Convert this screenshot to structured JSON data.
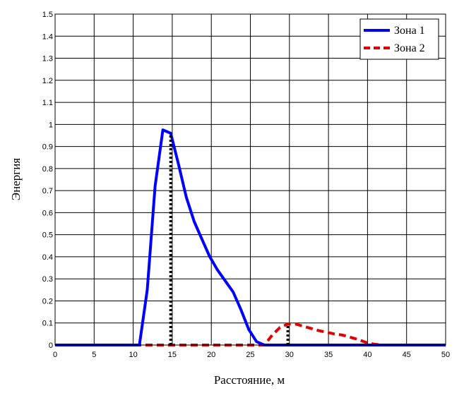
{
  "chart_data": {
    "type": "line",
    "xlabel": "Расстояние, м",
    "ylabel": "Энергия",
    "xlim": [
      0,
      50
    ],
    "ylim": [
      0,
      1.5
    ],
    "xticks": [
      0,
      5,
      10,
      15,
      20,
      25,
      30,
      35,
      40,
      45,
      50
    ],
    "yticks": [
      0,
      0.1,
      0.2,
      0.3,
      0.4,
      0.5,
      0.6,
      0.7,
      0.8,
      0.9,
      1,
      1.1,
      1.2,
      1.3,
      1.4,
      1.5
    ],
    "grid": true,
    "legend_position": "top-right",
    "series": [
      {
        "name": "Зона 1",
        "color": "#0000ff",
        "style": "solid",
        "x": [
          0,
          10.8,
          11.8,
          12.8,
          13.8,
          14.8,
          15.8,
          16.8,
          17.8,
          18.8,
          19.8,
          20.8,
          21.8,
          22.8,
          23.8,
          24.8,
          25.8,
          26.8,
          50
        ],
        "y": [
          0,
          0,
          0.25,
          0.72,
          0.975,
          0.96,
          0.82,
          0.67,
          0.56,
          0.48,
          0.4,
          0.34,
          0.29,
          0.24,
          0.16,
          0.07,
          0.015,
          0,
          0
        ]
      },
      {
        "name": "Зона 2",
        "color": "#e00000",
        "style": "dashed",
        "x": [
          0,
          26.8,
          27.8,
          28.8,
          29.8,
          30.8,
          31.8,
          32.8,
          33.8,
          34.8,
          35.8,
          36.8,
          37.8,
          38.8,
          39.8,
          40.8,
          41.8,
          50
        ],
        "y": [
          0,
          0,
          0.045,
          0.08,
          0.095,
          0.095,
          0.085,
          0.075,
          0.065,
          0.058,
          0.05,
          0.045,
          0.035,
          0.025,
          0.012,
          0.004,
          0,
          0
        ]
      }
    ],
    "markers": [
      {
        "x": 14.8,
        "y": 0.96,
        "color": "#000000",
        "style": "dotted"
      },
      {
        "x": 29.8,
        "y": 0.095,
        "color": "#000000",
        "style": "dotted"
      }
    ]
  }
}
